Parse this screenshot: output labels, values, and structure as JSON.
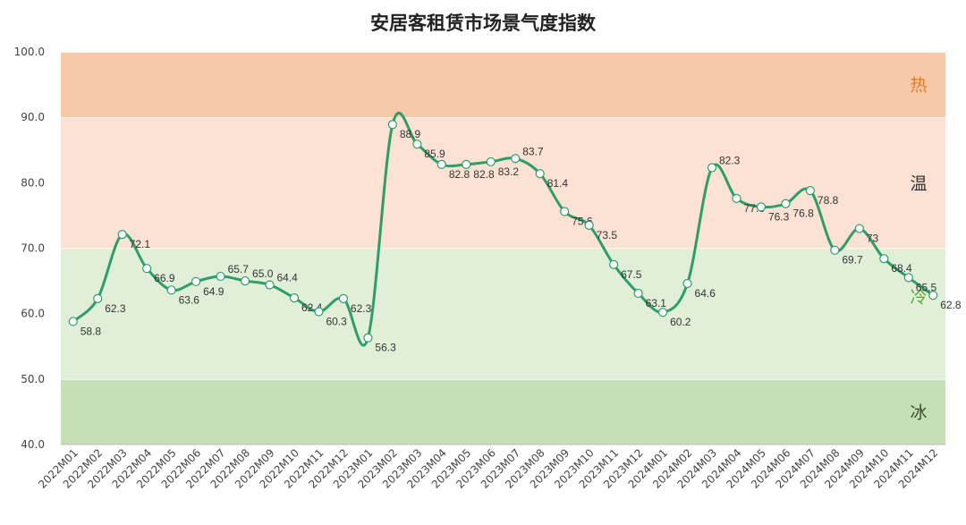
{
  "chart_data": {
    "type": "line",
    "title": "安居客租赁市场景气度指数",
    "xlabel": "",
    "ylabel": "",
    "ylim": [
      40,
      100
    ],
    "yticks": [
      "40.0",
      "50.0",
      "60.0",
      "70.0",
      "80.0",
      "90.0",
      "100.0"
    ],
    "grid": false,
    "smooth": true,
    "line_color": "#2e9e68",
    "categories": [
      "2022M01",
      "2022M02",
      "2022M03",
      "2022M04",
      "2022M05",
      "2022M06",
      "2022M07",
      "2022M08",
      "2022M09",
      "2022M10",
      "2022M11",
      "2022M12",
      "2023M01",
      "2023M02",
      "2023M03",
      "2023M04",
      "2023M05",
      "2023M06",
      "2023M07",
      "2023M08",
      "2023M09",
      "2023M10",
      "2023M11",
      "2023M12",
      "2024M01",
      "2024M02",
      "2024M03",
      "2024M04",
      "2024M05",
      "2024M06",
      "2024M07",
      "2024M08",
      "2024M09",
      "2024M10",
      "2024M11",
      "2024M12"
    ],
    "values": [
      58.8,
      62.3,
      72.1,
      66.9,
      63.6,
      64.9,
      65.7,
      65.0,
      64.4,
      62.4,
      60.3,
      62.3,
      56.3,
      88.9,
      85.9,
      82.8,
      82.8,
      83.2,
      83.7,
      81.4,
      75.6,
      73.5,
      67.5,
      63.1,
      60.2,
      64.6,
      82.3,
      77.6,
      76.3,
      76.8,
      78.8,
      69.7,
      73,
      68.4,
      65.5,
      62.8
    ],
    "data_labels": [
      "58.8",
      "62.3",
      "72.1",
      "66.9",
      "63.6",
      "64.9",
      "65.7",
      "65.0",
      "64.4",
      "62.4",
      "60.3",
      "62.3",
      "56.3",
      "88.9",
      "85.9",
      "82.8",
      "82.8",
      "83.2",
      "83.7",
      "81.4",
      "75.6",
      "73.5",
      "67.5",
      "63.1",
      "60.2",
      "64.6",
      "82.3",
      "77.6",
      "76.3",
      "76.8",
      "78.8",
      "69.7",
      "73",
      "68.4",
      "65.5",
      "62.8"
    ],
    "bands": [
      {
        "label": "冰",
        "from": 40,
        "to": 50,
        "color": "#c6e0b5",
        "label_color": "#3b4a30"
      },
      {
        "label": "冷",
        "from": 50,
        "to": 70,
        "color": "#e1efd9",
        "label_color": "#5aa83a"
      },
      {
        "label": "温",
        "from": 70,
        "to": 90,
        "color": "#fce2d4",
        "label_color": "#333333"
      },
      {
        "label": "热",
        "from": 90,
        "to": 100,
        "color": "#f6c9a9",
        "label_color": "#e07b2a"
      }
    ]
  }
}
